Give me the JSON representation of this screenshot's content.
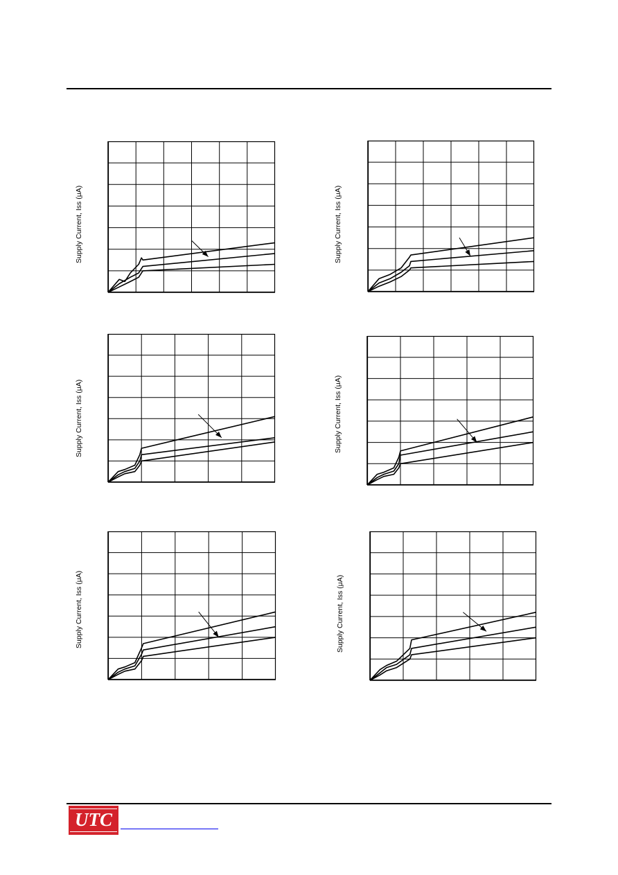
{
  "logo": {
    "text": "UTC"
  },
  "colors": {
    "ink": "#000000",
    "brand": "#d4222b",
    "link": "#0000ee"
  },
  "chart_data": [
    {
      "type": "line",
      "ylabel": "Supply Current, Iss (μA)",
      "xlabel": "",
      "title": "",
      "grid": true,
      "x_divisions": 6,
      "y_divisions": 7,
      "xlim": [
        0,
        6
      ],
      "ylim": [
        0,
        7
      ],
      "series": [
        {
          "x": [
            0,
            0.4,
            0.6,
            0.8,
            1.1,
            1.2,
            1.25,
            6
          ],
          "y": [
            0,
            0.6,
            0.5,
            0.9,
            1.3,
            1.6,
            1.5,
            2.3
          ]
        },
        {
          "x": [
            0,
            0.4,
            0.8,
            1.1,
            1.2,
            1.25,
            6
          ],
          "y": [
            0,
            0.4,
            0.7,
            0.9,
            1.1,
            1.2,
            1.8
          ]
        },
        {
          "x": [
            0,
            0.4,
            0.8,
            1.1,
            1.2,
            1.25,
            6
          ],
          "y": [
            0,
            0.25,
            0.5,
            0.7,
            0.9,
            1.0,
            1.3
          ]
        }
      ],
      "arrow": {
        "from": [
          3.0,
          2.4
        ],
        "to": [
          3.6,
          1.65
        ]
      }
    },
    {
      "type": "line",
      "ylabel": "Supply Current, Iss (μA)",
      "xlabel": "",
      "title": "",
      "grid": true,
      "x_divisions": 6,
      "y_divisions": 7,
      "xlim": [
        0,
        6
      ],
      "ylim": [
        0,
        7
      ],
      "series": [
        {
          "x": [
            0,
            0.4,
            0.8,
            1.2,
            1.5,
            1.55,
            6
          ],
          "y": [
            0,
            0.6,
            0.8,
            1.1,
            1.6,
            1.7,
            2.5
          ]
        },
        {
          "x": [
            0,
            0.4,
            0.8,
            1.2,
            1.5,
            1.55,
            6
          ],
          "y": [
            0,
            0.4,
            0.6,
            0.9,
            1.2,
            1.4,
            1.9
          ]
        },
        {
          "x": [
            0,
            0.4,
            0.8,
            1.2,
            1.5,
            1.55,
            6
          ],
          "y": [
            0,
            0.25,
            0.45,
            0.7,
            1.0,
            1.1,
            1.4
          ]
        }
      ],
      "arrow": {
        "from": [
          3.3,
          2.5
        ],
        "to": [
          3.7,
          1.65
        ]
      }
    },
    {
      "type": "line",
      "ylabel": "Supply Current, Iss (μA)",
      "xlabel": "",
      "title": "",
      "grid": true,
      "x_divisions": 5,
      "y_divisions": 7,
      "xlim": [
        0,
        5
      ],
      "ylim": [
        0,
        7
      ],
      "series": [
        {
          "x": [
            0,
            0.3,
            0.5,
            0.8,
            0.95,
            1.0,
            5
          ],
          "y": [
            0,
            0.5,
            0.6,
            0.8,
            1.3,
            1.6,
            3.1
          ]
        },
        {
          "x": [
            0,
            0.3,
            0.5,
            0.8,
            0.95,
            1.0,
            5
          ],
          "y": [
            0,
            0.35,
            0.5,
            0.65,
            1.0,
            1.3,
            2.1
          ]
        },
        {
          "x": [
            0,
            0.3,
            0.5,
            0.8,
            0.95,
            1.0,
            5
          ],
          "y": [
            0,
            0.25,
            0.4,
            0.5,
            0.8,
            1.0,
            1.9
          ]
        }
      ],
      "arrow": {
        "from": [
          2.7,
          3.2
        ],
        "to": [
          3.4,
          2.1
        ]
      }
    },
    {
      "type": "line",
      "ylabel": "Supply Current, Iss (μA)",
      "xlabel": "",
      "title": "",
      "grid": true,
      "x_divisions": 5,
      "y_divisions": 7,
      "xlim": [
        0,
        5
      ],
      "ylim": [
        0,
        7
      ],
      "series": [
        {
          "x": [
            0,
            0.3,
            0.5,
            0.8,
            0.95,
            1.0,
            5
          ],
          "y": [
            0,
            0.5,
            0.6,
            0.8,
            1.3,
            1.6,
            3.2
          ]
        },
        {
          "x": [
            0,
            0.3,
            0.5,
            0.8,
            0.95,
            1.0,
            5
          ],
          "y": [
            0,
            0.35,
            0.5,
            0.65,
            1.0,
            1.4,
            2.5
          ]
        },
        {
          "x": [
            0,
            0.3,
            0.5,
            0.8,
            0.95,
            1.0,
            5
          ],
          "y": [
            0,
            0.25,
            0.4,
            0.5,
            0.8,
            1.0,
            2.0
          ]
        }
      ],
      "arrow": {
        "from": [
          2.7,
          3.1
        ],
        "to": [
          3.3,
          2.0
        ]
      }
    },
    {
      "type": "line",
      "ylabel": "Supply Current, Iss (μA)",
      "xlabel": "",
      "title": "",
      "grid": true,
      "x_divisions": 5,
      "y_divisions": 7,
      "xlim": [
        0,
        5
      ],
      "ylim": [
        0,
        7
      ],
      "series": [
        {
          "x": [
            0,
            0.3,
            0.5,
            0.8,
            1.0,
            1.05,
            5
          ],
          "y": [
            0,
            0.5,
            0.6,
            0.8,
            1.5,
            1.7,
            3.2
          ]
        },
        {
          "x": [
            0,
            0.3,
            0.5,
            0.8,
            1.0,
            1.05,
            5
          ],
          "y": [
            0,
            0.35,
            0.5,
            0.65,
            1.2,
            1.4,
            2.5
          ]
        },
        {
          "x": [
            0,
            0.3,
            0.5,
            0.8,
            1.0,
            1.05,
            5
          ],
          "y": [
            0,
            0.25,
            0.4,
            0.5,
            0.9,
            1.1,
            2.0
          ]
        }
      ],
      "arrow": {
        "from": [
          2.7,
          3.2
        ],
        "to": [
          3.3,
          2.0
        ]
      }
    },
    {
      "type": "line",
      "ylabel": "Supply Current, Iss (μA)",
      "xlabel": "",
      "title": "",
      "grid": true,
      "x_divisions": 5,
      "y_divisions": 7,
      "xlim": [
        0,
        5
      ],
      "ylim": [
        0,
        7
      ],
      "series": [
        {
          "x": [
            0,
            0.3,
            0.5,
            0.8,
            1.2,
            1.25,
            5
          ],
          "y": [
            0,
            0.5,
            0.7,
            0.9,
            1.5,
            1.9,
            3.2
          ]
        },
        {
          "x": [
            0,
            0.3,
            0.5,
            0.8,
            1.2,
            1.25,
            5
          ],
          "y": [
            0,
            0.35,
            0.6,
            0.75,
            1.2,
            1.5,
            2.5
          ]
        },
        {
          "x": [
            0,
            0.3,
            0.5,
            0.8,
            1.2,
            1.25,
            5
          ],
          "y": [
            0,
            0.25,
            0.45,
            0.6,
            1.0,
            1.2,
            2.0
          ]
        }
      ],
      "arrow": {
        "from": [
          2.8,
          3.2
        ],
        "to": [
          3.5,
          2.3
        ]
      }
    }
  ]
}
